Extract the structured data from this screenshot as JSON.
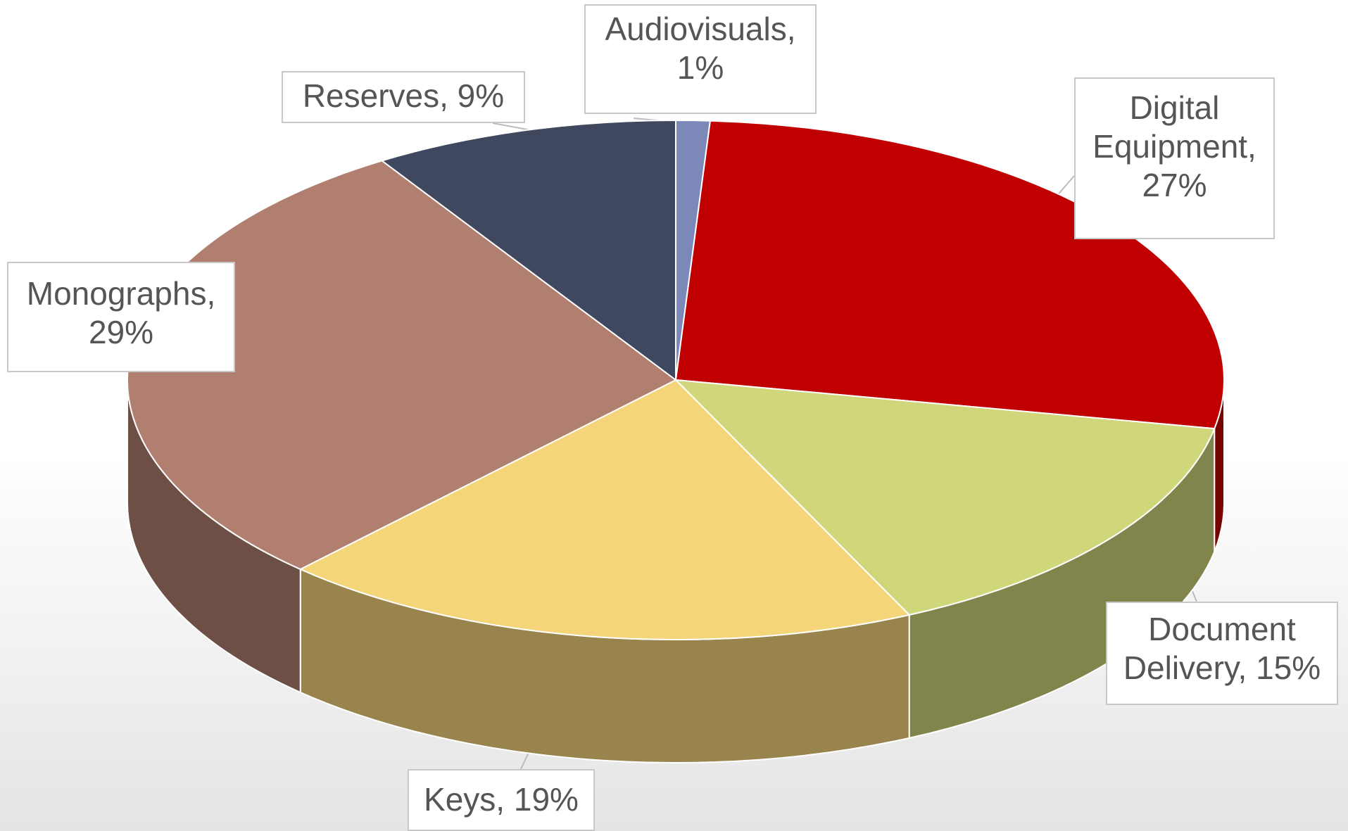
{
  "chart_data": {
    "type": "pie",
    "value_labels": [
      "Audiovisuals, 1%",
      "Digital Equipment, 27%",
      "Document Delivery, 15%",
      "Keys, 19%",
      "Monographs, 29%",
      "Reserves, 9%"
    ],
    "values": [
      1,
      27,
      15,
      19,
      29,
      9
    ],
    "colors": [
      "#7b88b8",
      "#c00000",
      "#d0d67a",
      "#f5d57a",
      "#b07f6f",
      "#404860"
    ]
  }
}
